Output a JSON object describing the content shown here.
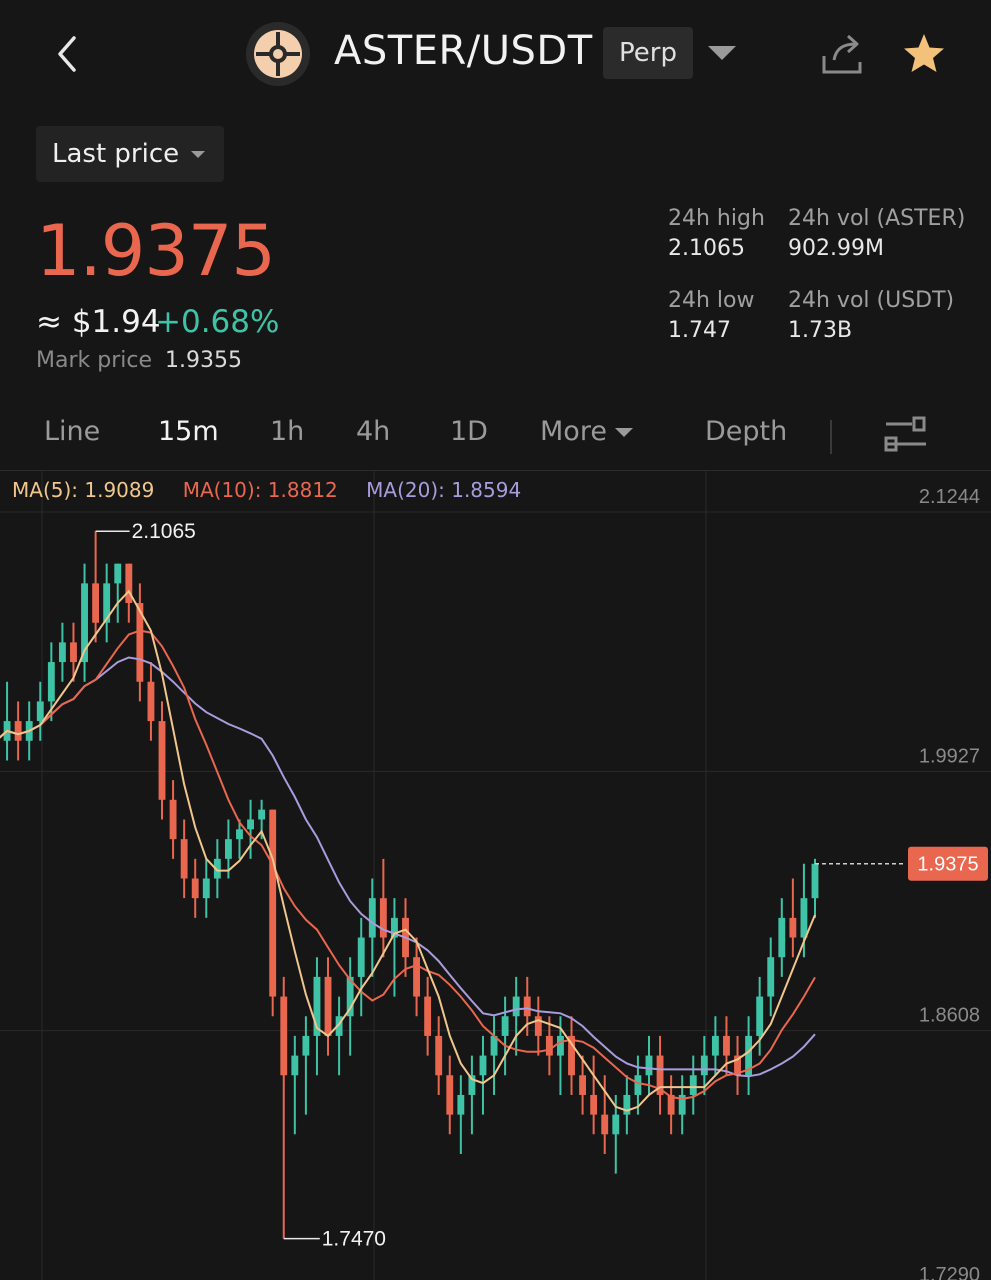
{
  "header": {
    "pair": "ASTER/USDT",
    "contract_type": "Perp",
    "logo_icon": "aster-logo-icon"
  },
  "price_type": {
    "label": "Last price"
  },
  "price": {
    "last": "1.9375",
    "usd": "≈ $1.94",
    "change": "+0.68%",
    "mark_label": "Mark price",
    "mark_value": "1.9355"
  },
  "stats": {
    "high_label": "24h high",
    "high_value": "2.1065",
    "low_label": "24h low",
    "low_value": "1.747",
    "vol_base_label": "24h vol (ASTER)",
    "vol_base_value": "902.99M",
    "vol_quote_label": "24h vol (USDT)",
    "vol_quote_value": "1.73B"
  },
  "tabs": [
    {
      "label": "Line"
    },
    {
      "label": "15m"
    },
    {
      "label": "1h"
    },
    {
      "label": "4h"
    },
    {
      "label": "1D"
    },
    {
      "label": "More"
    },
    {
      "label": "Depth"
    }
  ],
  "active_tab": "15m",
  "ma": {
    "ma5": "MA(5): 1.9089",
    "ma10": "MA(10): 1.8812",
    "ma20": "MA(20): 1.8594"
  },
  "colors": {
    "up": "#3fc3a6",
    "down": "#e9674e",
    "ma5": "#f0c68c",
    "ma10": "#e9674e",
    "ma20": "#a99cdc",
    "background": "#161616"
  },
  "chart_data": {
    "type": "candlestick",
    "interval": "15m",
    "y_axis_labels": [
      "2.1244",
      "1.9927",
      "1.8608",
      "1.7290"
    ],
    "ylim": [
      1.729,
      2.1244
    ],
    "current_price_label": "1.9375",
    "high_annotation": "2.1065",
    "low_annotation": "1.7470",
    "candles": [
      [
        2.02,
        2.04,
        1.99,
        2.0
      ],
      [
        2.0,
        2.03,
        1.99,
        2.01
      ],
      [
        2.01,
        2.02,
        1.99,
        2.0
      ],
      [
        2.0,
        2.02,
        1.99,
        2.01
      ],
      [
        2.01,
        2.03,
        2.0,
        2.02
      ],
      [
        2.02,
        2.05,
        2.01,
        2.04
      ],
      [
        2.04,
        2.06,
        2.03,
        2.05
      ],
      [
        2.05,
        2.06,
        2.03,
        2.04
      ],
      [
        2.04,
        2.09,
        2.03,
        2.08
      ],
      [
        2.08,
        2.1065,
        2.05,
        2.06
      ],
      [
        2.06,
        2.09,
        2.05,
        2.08
      ],
      [
        2.08,
        2.09,
        2.06,
        2.09
      ],
      [
        2.09,
        2.09,
        2.06,
        2.07
      ],
      [
        2.07,
        2.08,
        2.02,
        2.03
      ],
      [
        2.03,
        2.04,
        2.0,
        2.01
      ],
      [
        2.01,
        2.02,
        1.96,
        1.97
      ],
      [
        1.97,
        1.98,
        1.94,
        1.95
      ],
      [
        1.95,
        1.96,
        1.92,
        1.93
      ],
      [
        1.93,
        1.94,
        1.91,
        1.92
      ],
      [
        1.92,
        1.94,
        1.91,
        1.93
      ],
      [
        1.93,
        1.95,
        1.92,
        1.94
      ],
      [
        1.94,
        1.96,
        1.93,
        1.95
      ],
      [
        1.95,
        1.96,
        1.94,
        1.955
      ],
      [
        1.955,
        1.97,
        1.94,
        1.96
      ],
      [
        1.96,
        1.97,
        1.95,
        1.965
      ],
      [
        1.965,
        1.965,
        1.86,
        1.87
      ],
      [
        1.87,
        1.88,
        1.747,
        1.83
      ],
      [
        1.83,
        1.85,
        1.8,
        1.84
      ],
      [
        1.84,
        1.86,
        1.81,
        1.85
      ],
      [
        1.85,
        1.89,
        1.83,
        1.88
      ],
      [
        1.88,
        1.89,
        1.84,
        1.85
      ],
      [
        1.85,
        1.87,
        1.83,
        1.86
      ],
      [
        1.86,
        1.89,
        1.84,
        1.88
      ],
      [
        1.88,
        1.91,
        1.86,
        1.9
      ],
      [
        1.9,
        1.93,
        1.88,
        1.92
      ],
      [
        1.92,
        1.94,
        1.89,
        1.9
      ],
      [
        1.9,
        1.92,
        1.87,
        1.91
      ],
      [
        1.91,
        1.92,
        1.88,
        1.89
      ],
      [
        1.89,
        1.9,
        1.86,
        1.87
      ],
      [
        1.87,
        1.88,
        1.84,
        1.85
      ],
      [
        1.85,
        1.86,
        1.82,
        1.83
      ],
      [
        1.83,
        1.84,
        1.8,
        1.81
      ],
      [
        1.81,
        1.83,
        1.79,
        1.82
      ],
      [
        1.82,
        1.84,
        1.8,
        1.83
      ],
      [
        1.83,
        1.85,
        1.81,
        1.84
      ],
      [
        1.84,
        1.86,
        1.82,
        1.85
      ],
      [
        1.85,
        1.87,
        1.83,
        1.86
      ],
      [
        1.86,
        1.88,
        1.84,
        1.87
      ],
      [
        1.87,
        1.88,
        1.85,
        1.86
      ],
      [
        1.86,
        1.87,
        1.84,
        1.85
      ],
      [
        1.85,
        1.86,
        1.83,
        1.84
      ],
      [
        1.84,
        1.86,
        1.82,
        1.85
      ],
      [
        1.85,
        1.86,
        1.82,
        1.83
      ],
      [
        1.83,
        1.84,
        1.81,
        1.82
      ],
      [
        1.82,
        1.84,
        1.8,
        1.81
      ],
      [
        1.81,
        1.83,
        1.79,
        1.8
      ],
      [
        1.8,
        1.82,
        1.78,
        1.81
      ],
      [
        1.81,
        1.83,
        1.8,
        1.82
      ],
      [
        1.82,
        1.84,
        1.81,
        1.83
      ],
      [
        1.83,
        1.85,
        1.82,
        1.84
      ],
      [
        1.84,
        1.85,
        1.81,
        1.82
      ],
      [
        1.82,
        1.83,
        1.8,
        1.81
      ],
      [
        1.81,
        1.83,
        1.8,
        1.82
      ],
      [
        1.82,
        1.84,
        1.81,
        1.83
      ],
      [
        1.83,
        1.85,
        1.82,
        1.84
      ],
      [
        1.84,
        1.86,
        1.83,
        1.85
      ],
      [
        1.85,
        1.86,
        1.83,
        1.84
      ],
      [
        1.84,
        1.85,
        1.82,
        1.83
      ],
      [
        1.83,
        1.86,
        1.82,
        1.85
      ],
      [
        1.85,
        1.88,
        1.84,
        1.87
      ],
      [
        1.87,
        1.9,
        1.86,
        1.89
      ],
      [
        1.89,
        1.92,
        1.88,
        1.91
      ],
      [
        1.91,
        1.93,
        1.89,
        1.9
      ],
      [
        1.9,
        1.9375,
        1.89,
        1.92
      ],
      [
        1.92,
        1.94,
        1.91,
        1.9375
      ]
    ]
  }
}
